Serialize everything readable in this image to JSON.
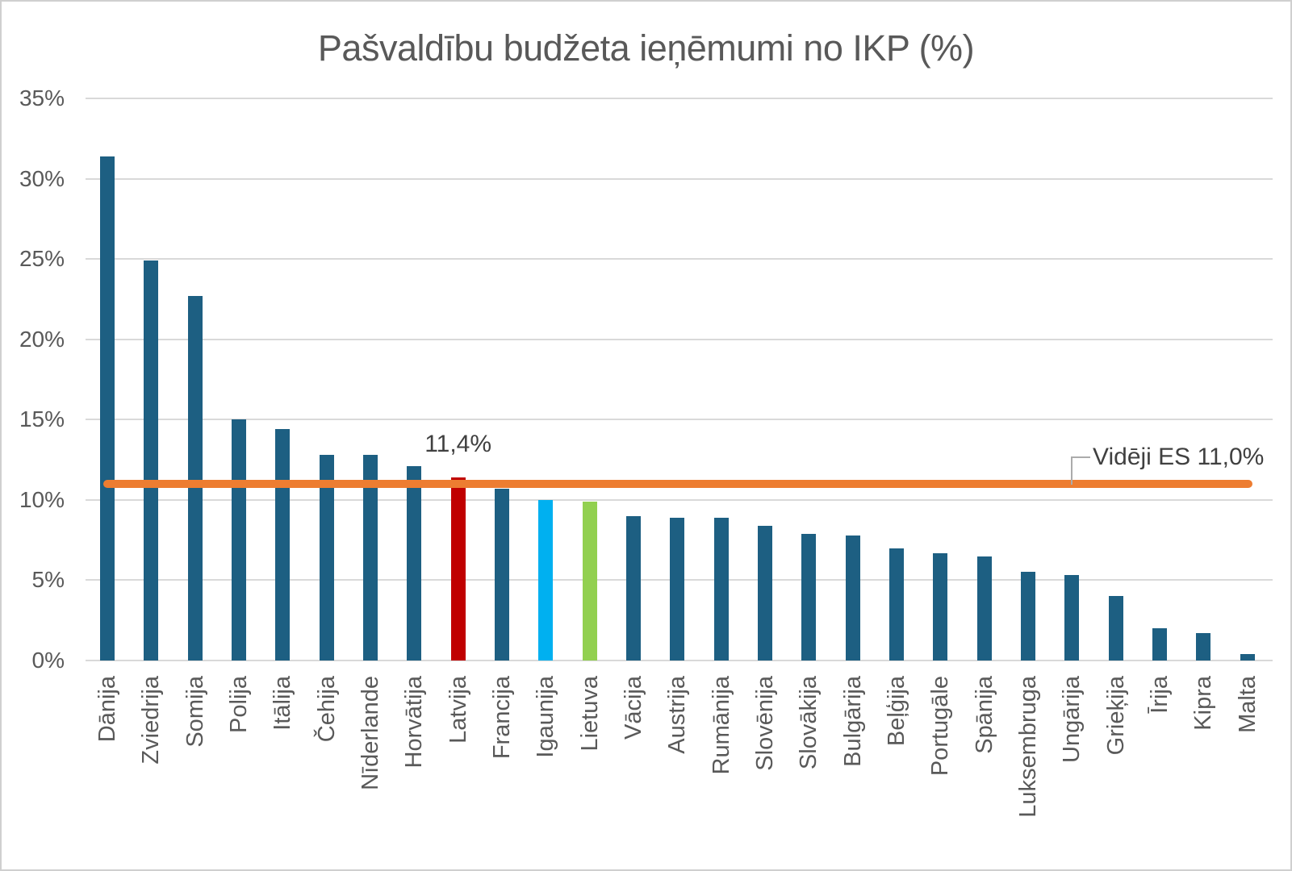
{
  "chart_data": {
    "type": "bar",
    "title": "Pašvaldību budžeta ieņēmumi no IKP (%)",
    "categories": [
      "Dānija",
      "Zviedrija",
      "Somija",
      "Polija",
      "Itālija",
      "Čehija",
      "Nīderlande",
      "Horvātija",
      "Latvija",
      "Francija",
      "Igaunija",
      "Lietuva",
      "Vācija",
      "Austrija",
      "Rumānija",
      "Slovēnija",
      "Slovākija",
      "Bulgārija",
      "Beļģija",
      "Portugāle",
      "Spānija",
      "Luksembruga",
      "Ungārija",
      "Grieķija",
      "Īrija",
      "Kipra",
      "Malta"
    ],
    "values": [
      31.4,
      24.9,
      22.7,
      15.0,
      14.4,
      12.8,
      12.8,
      12.1,
      11.4,
      10.7,
      10.0,
      9.9,
      9.0,
      8.9,
      8.9,
      8.4,
      7.9,
      7.8,
      7.0,
      6.7,
      6.5,
      5.5,
      5.3,
      4.0,
      2.0,
      1.7,
      0.4
    ],
    "xlabel": "",
    "ylabel": "",
    "ylim": [
      0,
      35
    ],
    "grid": true,
    "legend": "none",
    "y_ticks": [
      {
        "value": 0,
        "label": "0%"
      },
      {
        "value": 5,
        "label": "5%"
      },
      {
        "value": 10,
        "label": "10%"
      },
      {
        "value": 15,
        "label": "15%"
      },
      {
        "value": 20,
        "label": "20%"
      },
      {
        "value": 25,
        "label": "25%"
      },
      {
        "value": 30,
        "label": "30%"
      },
      {
        "value": 35,
        "label": "35%"
      }
    ],
    "bar_default_color": "#1d5f82",
    "highlight_colors": {
      "Latvija": "#c00000",
      "Igaunija": "#00b0f0",
      "Lietuva": "#92d050"
    },
    "gridline_color": "#d9d9d9",
    "text_color": "#595959",
    "reference_line": {
      "value": 11.0,
      "label": "Vidēji ES 11,0%",
      "color": "#ed7d31"
    },
    "annotation": {
      "category": "Latvija",
      "text": "11,4%",
      "color": "#404040"
    }
  }
}
